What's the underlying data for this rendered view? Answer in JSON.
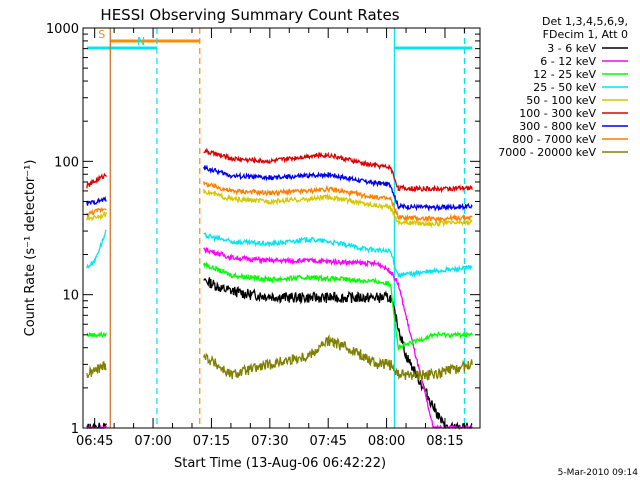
{
  "chart_data": {
    "type": "line",
    "title": "HESSI Observing Summary Count Rates",
    "xlabel": "Start Time (13-Aug-06 06:42:22)",
    "ylabel": "Count Rate (s⁻¹ detector⁻¹)",
    "yscale": "log",
    "ylim": [
      1,
      1000
    ],
    "xlim": [
      "06:42",
      "08:24"
    ],
    "x_ticks": [
      "06:45",
      "07:00",
      "07:15",
      "07:30",
      "07:45",
      "08:00",
      "08:15"
    ],
    "y_ticks": [
      "1",
      "10",
      "100",
      "1000"
    ],
    "legend_header": [
      "Det 1,3,4,5,6,9,",
      "FDecim 1, Att 0"
    ],
    "legend_position": "right",
    "timestamp": "5-Mar-2010 09:14",
    "flags": [
      {
        "label": "S",
        "color": "#ff8c00",
        "start": "06:49",
        "end": "07:12"
      },
      {
        "label": "N",
        "color": "#00e5ee",
        "start": "06:43",
        "end": "07:01"
      },
      {
        "label": "",
        "color": "#00e5ee",
        "start": "08:02",
        "end": "08:22"
      }
    ],
    "markers": [
      {
        "time": "06:49",
        "color": "#d2691e",
        "style": "solid"
      },
      {
        "time": "07:01",
        "color": "#00e5ee",
        "style": "dashed"
      },
      {
        "time": "07:12",
        "color": "#ff8c00",
        "style": "dashed"
      },
      {
        "time": "08:02",
        "color": "#00e5ee",
        "style": "solid"
      },
      {
        "time": "08:20",
        "color": "#00e5ee",
        "style": "dashed"
      }
    ],
    "data_gap": [
      "06:49",
      "07:13"
    ],
    "series": [
      {
        "name": "3 - 6 keV",
        "color": "#000000",
        "x": [
          "06:43",
          "06:48",
          "07:13",
          "07:18",
          "07:25",
          "07:35",
          "07:45",
          "07:55",
          "08:01",
          "08:05",
          "08:15",
          "08:22"
        ],
        "y": [
          1,
          1,
          13,
          11,
          10,
          9.5,
          9.5,
          9.5,
          9.5,
          3.5,
          1,
          1
        ]
      },
      {
        "name": "6 - 12 keV",
        "color": "#ff00ff",
        "x": [
          "06:43",
          "06:48",
          "07:13",
          "07:20",
          "07:30",
          "07:40",
          "07:50",
          "07:58",
          "08:01",
          "08:03",
          "08:12",
          "08:22"
        ],
        "y": [
          1,
          1,
          22,
          19,
          18,
          18,
          17.5,
          17,
          15,
          12,
          1,
          1
        ]
      },
      {
        "name": "12 - 25 keV",
        "color": "#00ff00",
        "x": [
          "06:43",
          "06:48",
          "07:13",
          "07:20",
          "07:30",
          "07:40",
          "07:50",
          "07:58",
          "08:01",
          "08:03",
          "08:12",
          "08:22"
        ],
        "y": [
          5,
          5,
          17,
          14,
          13,
          13.5,
          13,
          12.5,
          12,
          4,
          5,
          5
        ]
      },
      {
        "name": "25 - 50 keV",
        "color": "#00e5ee",
        "x": [
          "06:43",
          "06:45",
          "06:48",
          "07:13",
          "07:20",
          "07:30",
          "07:40",
          "07:45",
          "07:55",
          "08:01",
          "08:03",
          "08:12",
          "08:22"
        ],
        "y": [
          16,
          18,
          30,
          28,
          25,
          24,
          26,
          25,
          22,
          21,
          14,
          15,
          16
        ]
      },
      {
        "name": "50 - 100 keV",
        "color": "#d4c800",
        "x": [
          "06:43",
          "06:48",
          "07:13",
          "07:20",
          "07:30",
          "07:40",
          "07:45",
          "07:55",
          "08:01",
          "08:03",
          "08:12",
          "08:22"
        ],
        "y": [
          37,
          40,
          60,
          52,
          50,
          52,
          54,
          48,
          45,
          35,
          34,
          35
        ]
      },
      {
        "name": "100 - 300 keV",
        "color": "#dd0000",
        "x": [
          "06:43",
          "06:48",
          "07:13",
          "07:20",
          "07:30",
          "07:40",
          "07:45",
          "07:55",
          "08:01",
          "08:03",
          "08:12",
          "08:22"
        ],
        "y": [
          65,
          80,
          120,
          105,
          100,
          110,
          112,
          95,
          90,
          63,
          62,
          63
        ]
      },
      {
        "name": "300 - 800 keV",
        "color": "#0000ee",
        "x": [
          "06:43",
          "06:48",
          "07:13",
          "07:20",
          "07:30",
          "07:40",
          "07:45",
          "07:55",
          "08:01",
          "08:03",
          "08:12",
          "08:22"
        ],
        "y": [
          48,
          52,
          90,
          78,
          75,
          78,
          80,
          70,
          67,
          46,
          45,
          46
        ]
      },
      {
        "name": "800 - 7000 keV",
        "color": "#ff7f00",
        "x": [
          "06:43",
          "06:48",
          "07:13",
          "07:20",
          "07:30",
          "07:40",
          "07:45",
          "07:55",
          "08:01",
          "08:03",
          "08:12",
          "08:22"
        ],
        "y": [
          40,
          45,
          68,
          60,
          58,
          60,
          62,
          55,
          52,
          38,
          37,
          38
        ]
      },
      {
        "name": "7000 - 20000 keV",
        "color": "#808000",
        "x": [
          "06:43",
          "06:48",
          "07:13",
          "07:20",
          "07:30",
          "07:40",
          "07:45",
          "07:50",
          "07:58",
          "08:01",
          "08:03",
          "08:12",
          "08:22"
        ],
        "y": [
          2.5,
          3,
          3.5,
          2.5,
          3,
          3.5,
          4.5,
          4,
          3,
          3,
          2.5,
          2.5,
          3
        ]
      }
    ]
  }
}
